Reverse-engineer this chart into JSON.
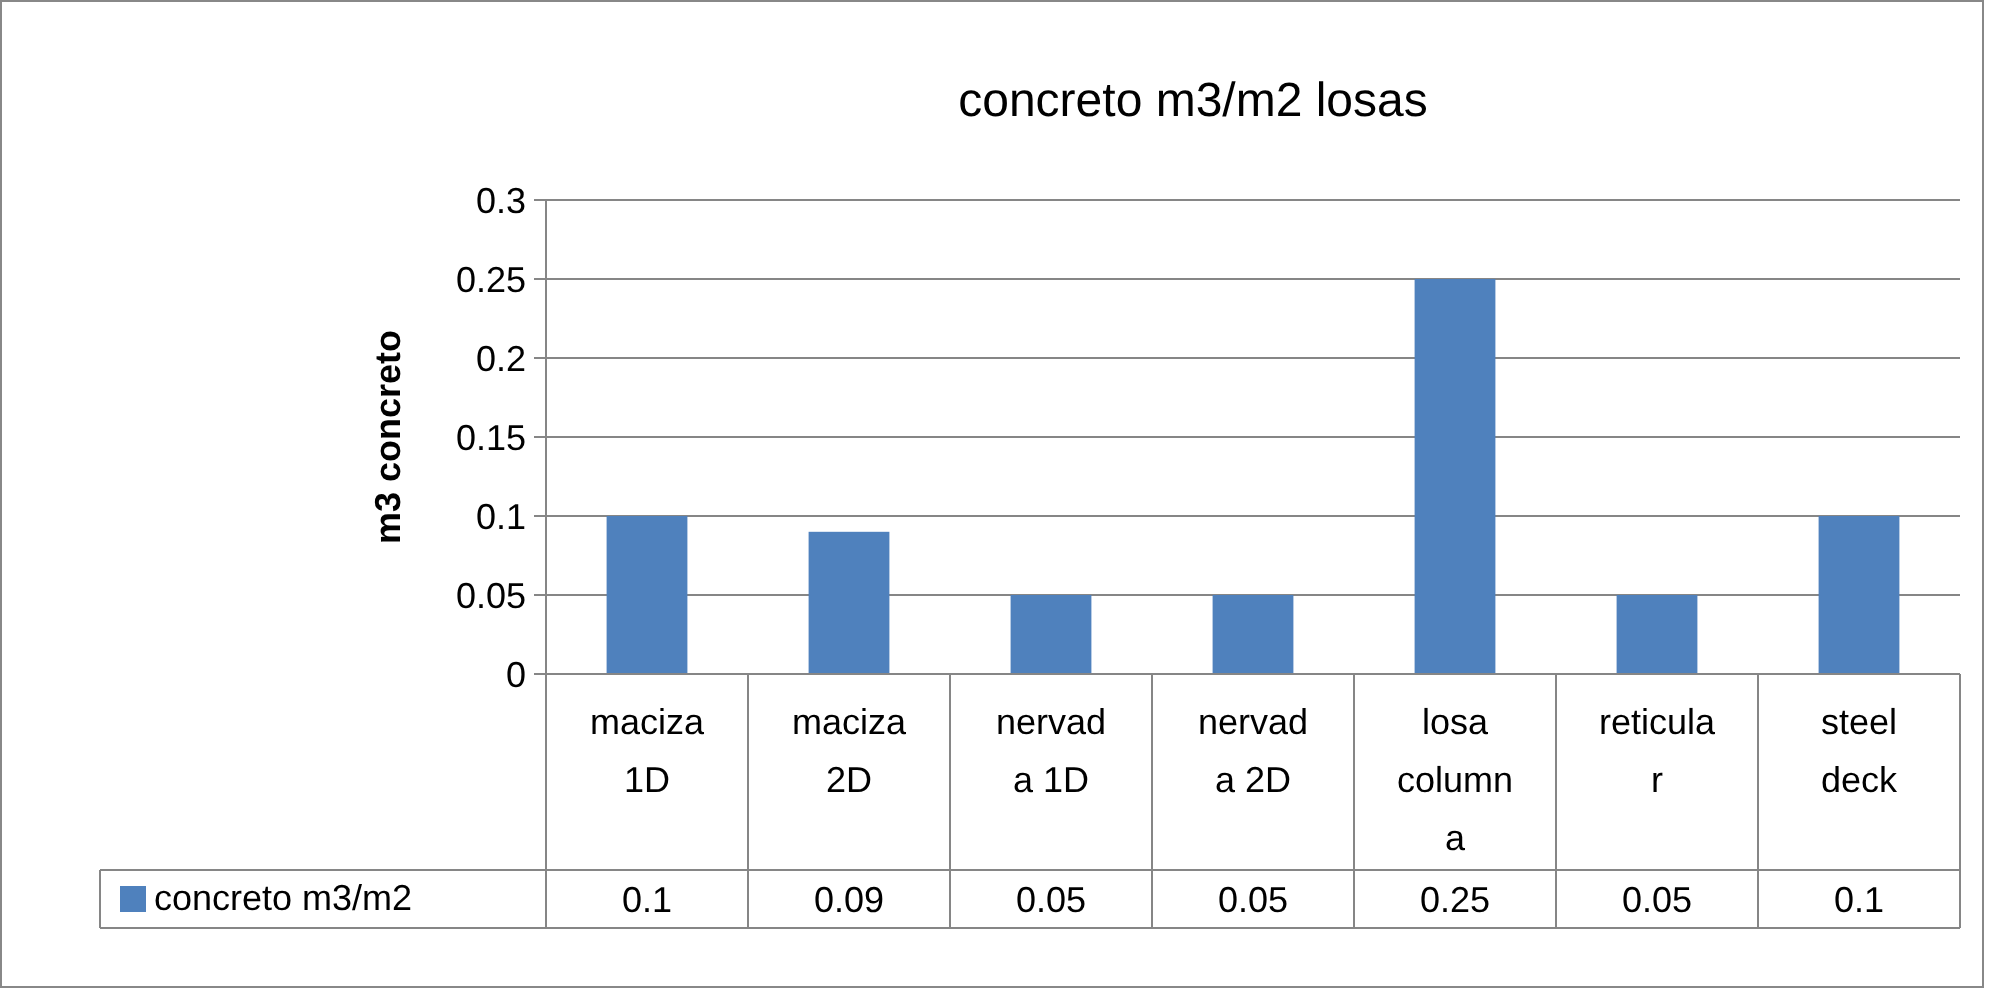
{
  "chart_data": {
    "type": "bar",
    "title": "concreto m3/m2 losas",
    "ylabel": "m3 concreto",
    "categories": [
      "maciza 1D",
      "maciza 2D",
      "nervada 1D",
      "nervada 2D",
      "losa columna",
      "reticular",
      "steel deck"
    ],
    "series": [
      {
        "name": "concreto m3/m2",
        "color": "#4f81bd",
        "values": [
          0.1,
          0.09,
          0.05,
          0.05,
          0.25,
          0.05,
          0.1
        ]
      }
    ],
    "ylim": [
      0,
      0.3
    ],
    "yticks": [
      0,
      0.05,
      0.1,
      0.15,
      0.2,
      0.25,
      0.3
    ],
    "grid": "y",
    "legend": "bottom",
    "data_labels": true
  }
}
